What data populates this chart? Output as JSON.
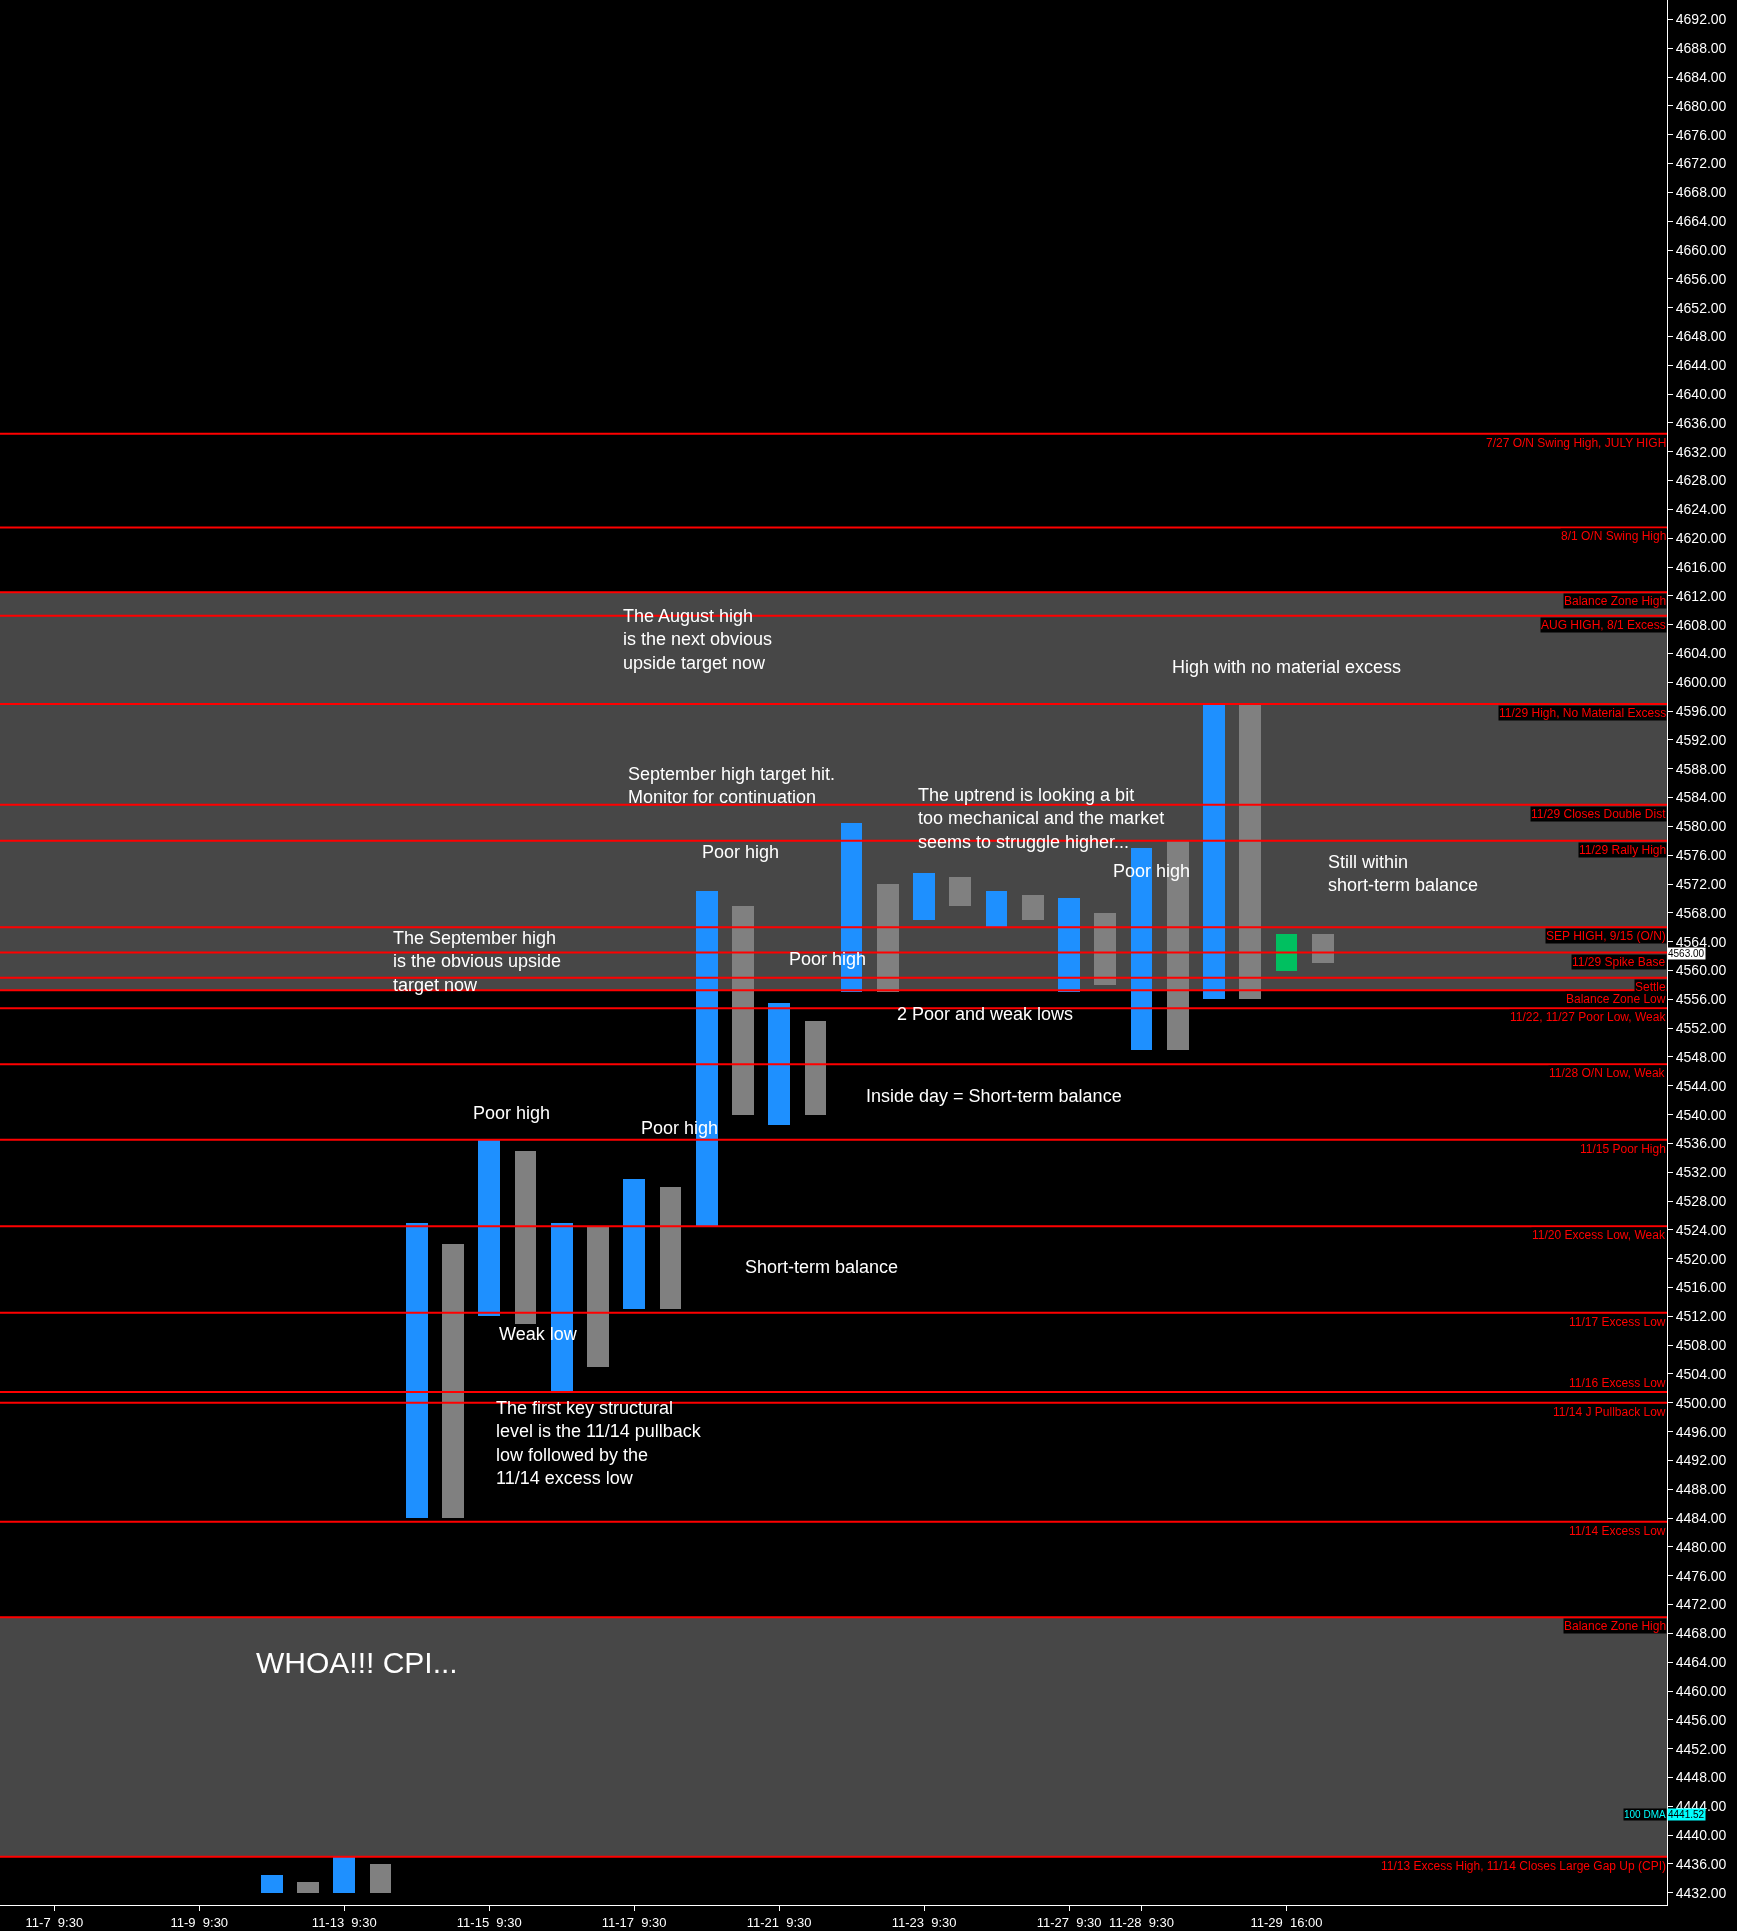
{
  "chart_data": {
    "type": "bar",
    "categories": [
      null,
      "11-7  9:30",
      null,
      null,
      null,
      "11-9  9:30",
      null,
      null,
      null,
      "11-13  9:30",
      null,
      null,
      null,
      "11-15  9:30",
      null,
      null,
      null,
      "11-17  9:30",
      null,
      null,
      null,
      "11-21  9:30",
      null,
      null,
      null,
      "11-23  9:30",
      null,
      null,
      null,
      "11-27  9:30",
      null,
      "11-28  9:30",
      null,
      null,
      null,
      "11-29  16:00",
      null,
      null,
      null,
      null,
      null,
      null,
      null,
      null,
      null,
      null
    ],
    "base": [
      null,
      null,
      null,
      null,
      null,
      null,
      null,
      4432,
      4432,
      4432,
      4432,
      4484,
      4484,
      4512,
      4511,
      4501.5,
      4505,
      4513,
      4513,
      4524.5,
      4540,
      4538.5,
      4540,
      4557,
      4557,
      4567,
      4569,
      4566,
      4567,
      4557,
      4558,
      4549,
      4549,
      4556,
      4556,
      4560,
      4561,
      null,
      null,
      null,
      null,
      null,
      null,
      null,
      null,
      null
    ],
    "values": [
      null,
      null,
      null,
      null,
      null,
      null,
      null,
      2.5,
      1.5,
      5,
      4,
      41,
      38,
      24.5,
      24,
      23.5,
      19.5,
      18,
      17,
      46.5,
      29,
      17,
      13,
      23.5,
      15,
      6.5,
      4,
      5,
      3.5,
      13,
      10,
      28,
      29,
      41,
      41,
      5,
      4,
      null,
      null,
      null,
      null,
      null,
      null,
      null,
      null,
      null
    ],
    "colors": [
      "#808080",
      "#808080",
      "#808080",
      "#808080",
      "#808080",
      "#1e90ff",
      "#808080",
      "#1e90ff",
      "#808080",
      "#1e90ff",
      "#808080",
      "#1e90ff",
      "#808080",
      "#1e90ff",
      "#808080",
      "#1e90ff",
      "#808080",
      "#1e90ff",
      "#808080",
      "#1e90ff",
      "#808080",
      "#1e90ff",
      "#808080",
      "#1e90ff",
      "#808080",
      "#1e90ff",
      "#808080",
      "#1e90ff",
      "#808080",
      "#1e90ff",
      "#808080",
      "#1e90ff",
      "#808080",
      "#1e90ff",
      "#808080",
      "#00c060",
      "#808080",
      "#808080",
      "#808080",
      "#808080",
      "#808080",
      "#808080",
      "#808080",
      "#808080",
      "#808080",
      "#808080"
    ],
    "ylim": [
      4430.3,
      4694.7
    ],
    "yticks": [
      {
        "value": 4432,
        "label": "4432.00"
      },
      {
        "value": 4436,
        "label": "4436.00"
      },
      {
        "value": 4440,
        "label": "4440.00"
      },
      {
        "value": 4444,
        "label": "4444.00"
      },
      {
        "value": 4448,
        "label": "4448.00"
      },
      {
        "value": 4452,
        "label": "4452.00"
      },
      {
        "value": 4456,
        "label": "4456.00"
      },
      {
        "value": 4460,
        "label": "4460.00"
      },
      {
        "value": 4464,
        "label": "4464.00"
      },
      {
        "value": 4468,
        "label": "4468.00"
      },
      {
        "value": 4472,
        "label": "4472.00"
      },
      {
        "value": 4476,
        "label": "4476.00"
      },
      {
        "value": 4480,
        "label": "4480.00"
      },
      {
        "value": 4484,
        "label": "4484.00"
      },
      {
        "value": 4488,
        "label": "4488.00"
      },
      {
        "value": 4492,
        "label": "4492.00"
      },
      {
        "value": 4496,
        "label": "4496.00"
      },
      {
        "value": 4500,
        "label": "4500.00"
      },
      {
        "value": 4504,
        "label": "4504.00"
      },
      {
        "value": 4508,
        "label": "4508.00"
      },
      {
        "value": 4512,
        "label": "4512.00"
      },
      {
        "value": 4516,
        "label": "4516.00"
      },
      {
        "value": 4520,
        "label": "4520.00"
      },
      {
        "value": 4524,
        "label": "4524.00"
      },
      {
        "value": 4528,
        "label": "4528.00"
      },
      {
        "value": 4532,
        "label": "4532.00"
      },
      {
        "value": 4536,
        "label": "4536.00"
      },
      {
        "value": 4540,
        "label": "4540.00"
      },
      {
        "value": 4544,
        "label": "4544.00"
      },
      {
        "value": 4548,
        "label": "4548.00"
      },
      {
        "value": 4552,
        "label": "4552.00"
      },
      {
        "value": 4556,
        "label": "4556.00"
      },
      {
        "value": 4560,
        "label": "4560.00"
      },
      {
        "value": 4564,
        "label": "4564.00"
      },
      {
        "value": 4568,
        "label": "4568.00"
      },
      {
        "value": 4572,
        "label": "4572.00"
      },
      {
        "value": 4576,
        "label": "4576.00"
      },
      {
        "value": 4580,
        "label": "4580.00"
      },
      {
        "value": 4584,
        "label": "4584.00"
      },
      {
        "value": 4588,
        "label": "4588.00"
      },
      {
        "value": 4592,
        "label": "4592.00"
      },
      {
        "value": 4596,
        "label": "4596.00"
      },
      {
        "value": 4600,
        "label": "4600.00"
      },
      {
        "value": 4604,
        "label": "4604.00"
      },
      {
        "value": 4608,
        "label": "4608.00"
      },
      {
        "value": 4612,
        "label": "4612.00"
      },
      {
        "value": 4616,
        "label": "4616.00"
      },
      {
        "value": 4620,
        "label": "4620.00"
      },
      {
        "value": 4624,
        "label": "4624.00"
      },
      {
        "value": 4628,
        "label": "4628.00"
      },
      {
        "value": 4632,
        "label": "4632.00"
      },
      {
        "value": 4636,
        "label": "4636.00"
      },
      {
        "value": 4640,
        "label": "4640.00"
      },
      {
        "value": 4644,
        "label": "4644.00"
      },
      {
        "value": 4648,
        "label": "4648.00"
      },
      {
        "value": 4652,
        "label": "4652.00"
      },
      {
        "value": 4656,
        "label": "4656.00"
      },
      {
        "value": 4660,
        "label": "4660.00"
      },
      {
        "value": 4664,
        "label": "4664.00"
      },
      {
        "value": 4668,
        "label": "4668.00"
      },
      {
        "value": 4672,
        "label": "4672.00"
      },
      {
        "value": 4676,
        "label": "4676.00"
      },
      {
        "value": 4680,
        "label": "4680.00"
      },
      {
        "value": 4684,
        "label": "4684.00"
      },
      {
        "value": 4688,
        "label": "4688.00"
      },
      {
        "value": 4692,
        "label": "4692.00"
      }
    ],
    "bands": [
      {
        "axis": "y",
        "from": 4557.25,
        "to": 4612.5,
        "color": "#474747"
      },
      {
        "axis": "y",
        "from": 4437,
        "to": 4470.25,
        "color": "#474747"
      }
    ],
    "ref_lines": [
      {
        "axis": "y",
        "value": 4634.5,
        "label": "7/27 O/N Swing High, JULY HIGH",
        "color": "#ff0000"
      },
      {
        "axis": "y",
        "value": 4621.5,
        "label": "8/1 O/N Swing High",
        "color": "#ff0000"
      },
      {
        "axis": "y",
        "value": 4612.5,
        "label": "Balance Zone High",
        "color": "#ff0000"
      },
      {
        "axis": "y",
        "value": 4609.25,
        "label": "AUG HIGH, 8/1 Excess",
        "color": "#ff0000"
      },
      {
        "axis": "y",
        "value": 4597,
        "label": "11/29 High, No Material Excess",
        "color": "#ff0000"
      },
      {
        "axis": "y",
        "value": 4583,
        "label": "11/29 Closes Double Dist",
        "color": "#ff0000"
      },
      {
        "axis": "y",
        "value": 4578,
        "label": "11/29 Rally High",
        "color": "#ff0000"
      },
      {
        "axis": "y",
        "value": 4566,
        "label": "SEP HIGH, 9/15 (O/N)",
        "color": "#ff0000"
      },
      {
        "axis": "y",
        "value": 4562.5,
        "label": "11/29 Spike Base",
        "color": "#ff0000"
      },
      {
        "axis": "y",
        "value": 4559,
        "label": "Settle",
        "color": "#ff0000"
      },
      {
        "axis": "y",
        "value": 4557.25,
        "label": "Balance Zone Low",
        "color": "#ff0000"
      },
      {
        "axis": "y",
        "value": 4554.75,
        "label": "11/22, 11/27 Poor Low, Weak",
        "color": "#ff0000"
      },
      {
        "axis": "y",
        "value": 4547,
        "label": "11/28 O/N Low, Weak",
        "color": "#ff0000"
      },
      {
        "axis": "y",
        "value": 4536.5,
        "label": "11/15 Poor High",
        "color": "#ff0000"
      },
      {
        "axis": "y",
        "value": 4524.5,
        "label": "11/20 Excess Low, Weak",
        "color": "#ff0000"
      },
      {
        "axis": "y",
        "value": 4512.5,
        "label": "11/17 Excess Low",
        "color": "#ff0000"
      },
      {
        "axis": "y",
        "value": 4501.5,
        "label": "11/16 Excess Low",
        "color": "#ff0000"
      },
      {
        "axis": "y",
        "value": 4500,
        "label": "11/14 J Pullback Low",
        "color": "#ff0000"
      },
      {
        "axis": "y",
        "value": 4483.5,
        "label": "11/14 Excess Low",
        "color": "#ff0000"
      },
      {
        "axis": "y",
        "value": 4470.25,
        "label": "Balance Zone High",
        "color": "#ff0000"
      },
      {
        "axis": "y",
        "value": 4437,
        "label": "11/13 Excess High, 11/14 Closes Large Gap Up (CPI)",
        "color": "#ff0000"
      }
    ],
    "annotations": [
      "The August high\nis the next obvious\nupside target now",
      "High with no material excess",
      "September high target hit.\nMonitor for continuation",
      "The uptrend is looking a bit\ntoo mechanical and the market\nseems to struggle higher...",
      "Poor high",
      "Poor high",
      "Still within\nshort-term balance",
      "Poor high",
      "The September high\nis the obvious upside\ntarget now",
      "2 Poor and weak lows",
      "Inside day = Short-term balance",
      "Poor high",
      "Poor high",
      "Short-term balance",
      "Weak low",
      "The first key structural\nlevel is the 11/14 pullback\nlow followed by the\n11/14 excess low",
      "WHOA!!! CPI...",
      "4563.00",
      "100 DMA",
      "4441.52"
    ]
  }
}
